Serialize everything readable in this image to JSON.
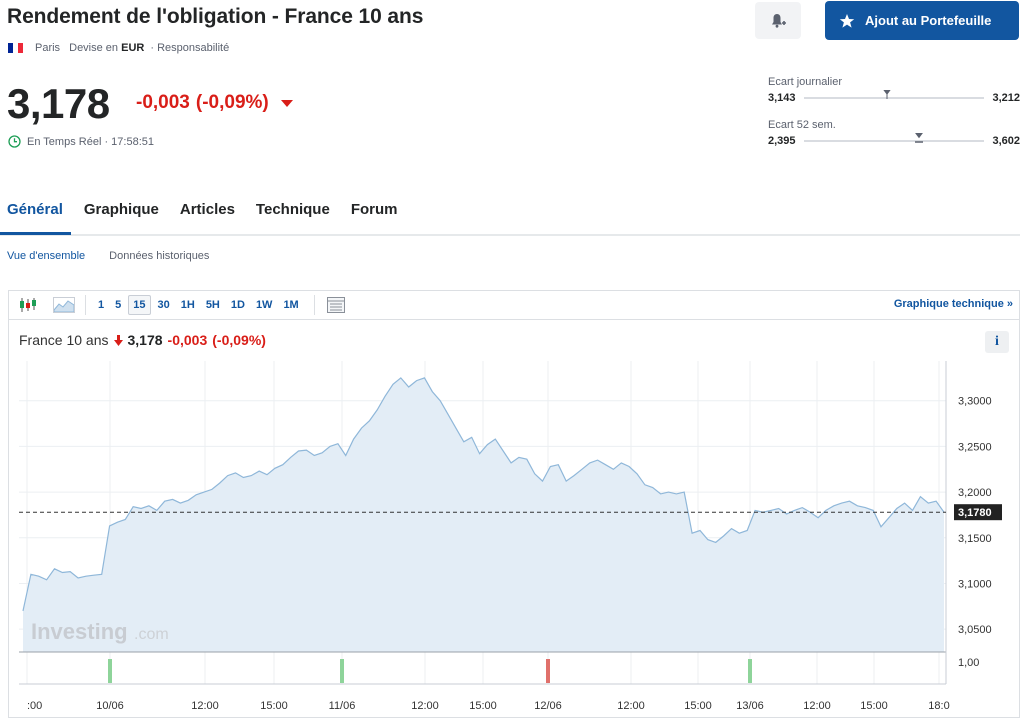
{
  "header": {
    "title": "Rendement de l'obligation - France 10 ans",
    "exchange": "Paris",
    "currency_label": "Devise en",
    "currency": "EUR",
    "disclaimer": "· Responsabilité",
    "flag_colors": [
      "#002395",
      "#ffffff",
      "#ed2939"
    ],
    "add_button_label": "Ajout au Portefeuille"
  },
  "quote": {
    "price": "3,178",
    "change": "-0,003",
    "change_pct": "(-0,09%)",
    "realtime_label": "En Temps Réel · 17:58:51"
  },
  "ranges": {
    "daily": {
      "label": "Ecart journalier",
      "low": "3,143",
      "high": "3,212",
      "position": 0.46
    },
    "week52": {
      "label": "Ecart 52 sem.",
      "low": "2,395",
      "high": "3,602",
      "position": 0.64
    }
  },
  "tabs": [
    "Général",
    "Graphique",
    "Articles",
    "Technique",
    "Forum"
  ],
  "active_tab": 0,
  "subtabs": [
    "Vue d'ensemble",
    "Données historiques"
  ],
  "toolbar": {
    "timeframes": [
      "1",
      "5",
      "15",
      "30",
      "1H",
      "5H",
      "1D",
      "1W",
      "1M"
    ],
    "active_timeframe": "15",
    "tech_link": "Graphique technique »"
  },
  "chart_head": {
    "name": "France 10 ans",
    "price": "3,178",
    "change": "-0,003",
    "change_pct": "(-0,09%)"
  },
  "colors": {
    "accent": "#1256a0",
    "negative": "#d91e18",
    "line": "#8fb7d9",
    "area": "#e3edf6",
    "vol_up": "#8ed49a",
    "vol_down": "#e0706b"
  },
  "chart_data": {
    "type": "area",
    "title": "France 10 ans",
    "x_tick_labels": [
      ":00",
      "10/06",
      "12:00",
      "15:00",
      "11/06",
      "12:00",
      "15:00",
      "12/06",
      "12:00",
      "15:00",
      "13/06",
      "12:00",
      "15:00",
      "18:0"
    ],
    "y_tick_labels": [
      "3,3000",
      "3,2500",
      "3,2000",
      "3,1500",
      "3,1000",
      "3,0500"
    ],
    "volume_tick_label": "1,00",
    "ylim": [
      3.025,
      3.338
    ],
    "last_value": 3.178,
    "last_value_label": "3,1780",
    "series": [
      {
        "values": [
          3.07,
          3.11,
          3.108,
          3.104,
          3.116,
          3.112,
          3.113,
          3.106,
          3.108,
          3.109,
          3.11,
          3.163,
          3.167,
          3.17,
          3.184,
          3.182,
          3.185,
          3.18,
          3.19,
          3.192,
          3.188,
          3.191,
          3.197,
          3.2,
          3.203,
          3.21,
          3.218,
          3.221,
          3.216,
          3.218,
          3.223,
          3.219,
          3.226,
          3.23,
          3.238,
          3.245,
          3.246,
          3.24,
          3.243,
          3.25,
          3.253,
          3.24,
          3.258,
          3.27,
          3.278,
          3.29,
          3.305,
          3.318,
          3.325,
          3.315,
          3.322,
          3.325,
          3.31,
          3.3,
          3.285,
          3.27,
          3.255,
          3.26,
          3.242,
          3.252,
          3.258,
          3.245,
          3.232,
          3.238,
          3.236,
          3.22,
          3.212,
          3.228,
          3.23,
          3.212,
          3.218,
          3.225,
          3.232,
          3.235,
          3.23,
          3.225,
          3.232,
          3.228,
          3.22,
          3.208,
          3.205,
          3.198,
          3.2,
          3.198,
          3.2,
          3.155,
          3.158,
          3.148,
          3.145,
          3.152,
          3.16,
          3.155,
          3.158,
          3.18,
          3.178,
          3.18,
          3.182,
          3.176,
          3.18,
          3.183,
          3.178,
          3.172,
          3.18,
          3.185,
          3.188,
          3.19,
          3.185,
          3.183,
          3.18,
          3.162,
          3.172,
          3.182,
          3.188,
          3.18,
          3.195,
          3.188,
          3.19,
          3.178
        ],
        "volume_down_indices": [
          2
        ]
      }
    ],
    "volume_ticks": [
      "10/06",
      "11/06",
      "12/06",
      "13/06"
    ],
    "grid": true
  }
}
